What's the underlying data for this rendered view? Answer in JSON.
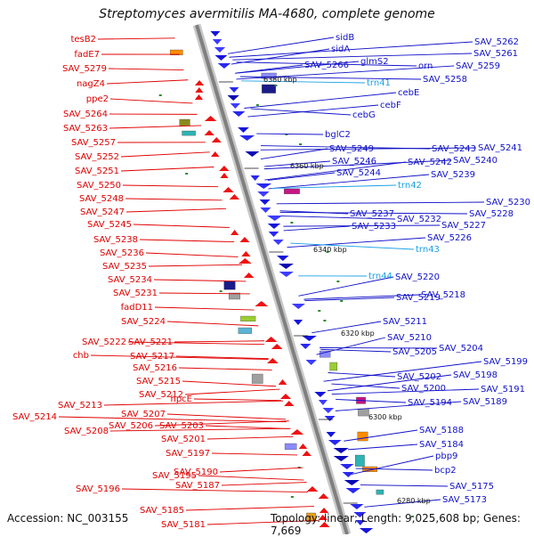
{
  "title": "Streptomyces avermitilis MA-4680, complete genome",
  "footer": {
    "accession": "Accession: NC_003155",
    "summary": "Topology: linear; Length: 9,025,608 bp; Genes: 7,669"
  },
  "ruler": [
    "6380 kbp",
    "6360 kbp",
    "6340 kbp",
    "6320 kbp",
    "6300 kbp",
    "6280 kbp"
  ],
  "left_labels": [
    "tesB2",
    "fadE7",
    "SAV_5279",
    "nagZ4",
    "ppe2",
    "SAV_5264",
    "SAV_5263",
    "SAV_5257",
    "SAV_5252",
    "SAV_5251",
    "SAV_5250",
    "SAV_5248",
    "SAV_5247",
    "SAV_5245",
    "SAV_5238",
    "SAV_5236",
    "SAV_5235",
    "SAV_5234",
    "SAV_5231",
    "fadD11",
    "SAV_5224",
    "SAV_5222",
    "SAV_5221",
    "chb",
    "SAV_5217",
    "SAV_5216",
    "SAV_5215",
    "SAV_5212",
    "SAV_5213",
    "hpcE",
    "SAV_5214",
    "SAV_5207",
    "SAV_5208",
    "SAV_5206",
    "SAV_5203",
    "SAV_5201",
    "SAV_5197",
    "SAV_5195",
    "SAV_5190",
    "SAV_5187",
    "SAV_5196",
    "SAV_5185",
    "SAV_5181"
  ],
  "right_labels": [
    "sidB",
    "SAV_5262",
    "sidA",
    "SAV_5261",
    "SAV_5266",
    "glmS2",
    "orn",
    "SAV_5259",
    "trn41",
    "SAV_5258",
    "cebE",
    "cebF",
    "cebG",
    "bglC2",
    "SAV_5249",
    "SAV_5243",
    "SAV_5241",
    "SAV_5246",
    "SAV_5242",
    "SAV_5240",
    "SAV_5244",
    "SAV_5239",
    "trn42",
    "SAV_5230",
    "SAV_5237",
    "SAV_5232",
    "SAV_5228",
    "SAV_5233",
    "SAV_5227",
    "SAV_5226",
    "trn43",
    "trn44",
    "SAV_5220",
    "SAV_5219",
    "SAV_5218",
    "SAV_5211",
    "SAV_5210",
    "SAV_5204",
    "SAV_5205",
    "SAV_5199",
    "SAV_5202",
    "SAV_5198",
    "SAV_5200",
    "SAV_5191",
    "SAV_5194",
    "SAV_5189",
    "SAV_5188",
    "SAV_5184",
    "pbp9",
    "bcp2",
    "SAV_5175",
    "SAV_5173"
  ]
}
